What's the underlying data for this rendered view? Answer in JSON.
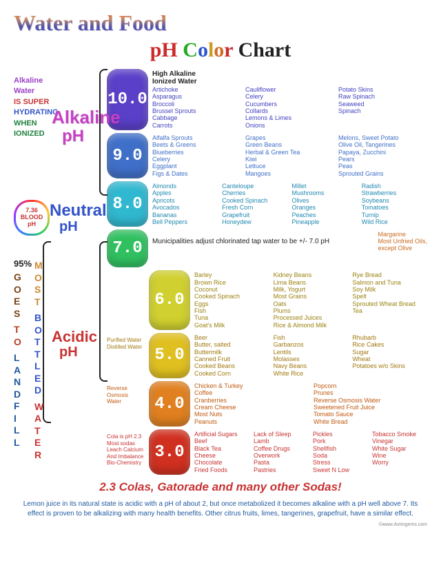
{
  "title_line1": "Water and Food",
  "title_pH": "pH",
  "title_color": {
    "C": "C",
    "o1": "o",
    "l": "l",
    "o2": "o",
    "r": "r"
  },
  "title_chart": " Chart",
  "sidebar": {
    "alkaline": {
      "l1": "Alkaline",
      "l2": "Water",
      "l3": "IS SUPER",
      "l4": "HYDRATING",
      "l5": "WHEN IONIZED"
    },
    "big_alkaline": "Alkaline",
    "big_ph1": "pH",
    "heart": "7.36\nBLOOD\npH",
    "big_neutral": "Neutral",
    "big_ph2": "pH",
    "big_acidic": "Acidic",
    "big_ph3": "pH",
    "p95": "95%",
    "vert1": "GOES TO LANDFILL",
    "vert2": "MOST BOTTLED WATER"
  },
  "rows": [
    {
      "ph": "10.0",
      "bg": "#5a3fc8",
      "txt": "#4040c0",
      "cols": 3,
      "head": "High Alkaline\nIonized Water",
      "head_color": "#222",
      "items": [
        "Artichoke",
        "Asparagus",
        "Broccoli",
        "Brussel Sprouts",
        "Cabbage",
        "Carrots",
        "Cauliflower",
        "Celery",
        "Cucumbers",
        "Collards",
        "Lemons & Limes",
        "Onions",
        "Potato Skins",
        "Raw Spinach",
        "Seaweed",
        "Spinach"
      ]
    },
    {
      "ph": "9.0",
      "bg": "#3f6fc8",
      "txt": "#3f6fc8",
      "cols": 3,
      "head": "",
      "items": [
        "Alfalfa Sprouts",
        "Beets & Greens",
        "Blueberries",
        "Celery",
        "Eggplant",
        "Figs & Dates",
        "Grapes",
        "Green Beans",
        "Herbal & Green Tea",
        "Kiwi",
        "Lettuce",
        "Mangoes",
        "Melons, Sweet Potato",
        "Olive Oil, Tangerines",
        "Papaya, Zucchini",
        "Pears",
        "Peas",
        "Sprouted Grains"
      ]
    },
    {
      "ph": "8.0",
      "bg": "#30b8d0",
      "txt": "#2088b0",
      "cols": 4,
      "head": "",
      "items": [
        "Almonds",
        "Apples",
        "Apricots",
        "Avocados",
        "Bananas",
        "Bell Peppers",
        "Canteloupe",
        "Cherries",
        "Cooked Spinach",
        "Fresh Corn",
        "Grapefruit",
        "Honeydew",
        "Millet",
        "Mushrooms",
        "Olives",
        "Oranges",
        "Peaches",
        "Pineapple",
        "Radish",
        "Strawberries",
        "Soybeans",
        "Tomatoes",
        "Turnip",
        "Wild Rice"
      ]
    },
    {
      "ph": "7.0",
      "bg": "#30c060",
      "txt": "#c83232",
      "cols": 1,
      "head": "",
      "note": "Municipalities adjust chlorinated tap water to be +/- 7.0 pH",
      "right": "Margarine\nMost Unfried Oils,\nexcept Olive",
      "right_color": "#c86b20",
      "items": []
    },
    {
      "ph": "6.0",
      "bg": "#d0d030",
      "txt": "#9a8210",
      "cols": 3,
      "head": "",
      "items": [
        "Barley",
        "Brown Rice",
        "Coconut",
        "Cooked Spinach",
        "Eggs",
        "Fish",
        "Tuna",
        "Goat's Milk",
        "Kidney Beans",
        "Lima Beans",
        "Milk, Yogurt",
        "Most Grains",
        "Oats",
        "Plums",
        "Processed Juices",
        "Rice & Almond Milk",
        "Rye Bread",
        "Salmon and Tuna",
        "Soy Milk",
        "Spelt",
        "Sprouted Wheat Bread",
        "Tea"
      ]
    },
    {
      "ph": "5.0",
      "bg": "#e0c020",
      "txt": "#a07810",
      "cols": 3,
      "head": "",
      "left": "Purified Water\nDistilled Water",
      "items": [
        "Beer",
        "Butter, salted",
        "Buttermilk",
        "Canned Fruit",
        "Cooked Beans",
        "Cooked Corn",
        "Fish",
        "Garbanzos",
        "Lentils",
        "Molasses",
        "Navy Beans",
        "White Rice",
        "Rhubarb",
        "Rice Cakes",
        "Sugar",
        "Wheat",
        "Potatoes w/o Skins"
      ]
    },
    {
      "ph": "4.0",
      "bg": "#e08020",
      "txt": "#c05a10",
      "cols": 2,
      "head": "",
      "left": "Reverse\nOsmosis\nWater",
      "items": [
        "Chicken & Turkey",
        "Coffee",
        "Cranberries",
        "Cream Cheese",
        "Most Nuts",
        "Peanuts",
        "Popcorn",
        "Prunes",
        "Reverse Osmosis Water",
        "Sweetened Fruit Juice",
        "Tomato Sauce",
        "White Bread"
      ]
    },
    {
      "ph": "3.0",
      "bg": "#d03020",
      "txt": "#c83232",
      "cols": 4,
      "head": "",
      "left": "Cola is pH 2.3\nMost sodas\nLeach Calcium\nAnd Imbalance\nBio-Chemistry",
      "items": [
        "Artificial Sugars",
        "Beef",
        "Black Tea",
        "Cheese",
        "Chocolate",
        "Fried Foods",
        "Lack of Sleep",
        "Lamb",
        "Coffee Drugs",
        "Overwork",
        "Pasta",
        "Pastries",
        "Pickles",
        "Pork",
        "Shellfish",
        "Soda",
        "Stress",
        "Sweet N Low",
        "Tobacco Smoke",
        "Vinegar",
        "White Sugar",
        "Wine",
        "Worry"
      ]
    }
  ],
  "footer_23": "2.3  Colas, Gatorade and many other Sodas!",
  "footer_text": "Lemon juice in its natural state is acidic with a pH of about 2, but once metabolized it becomes alkaline with a pH well above 7. Its effect is proven to be alkalizing with many health benefits. Other citrus fruits, limes, tangerines, grapefruit, have a similar effect.",
  "source": "©www.Astrogems.com"
}
